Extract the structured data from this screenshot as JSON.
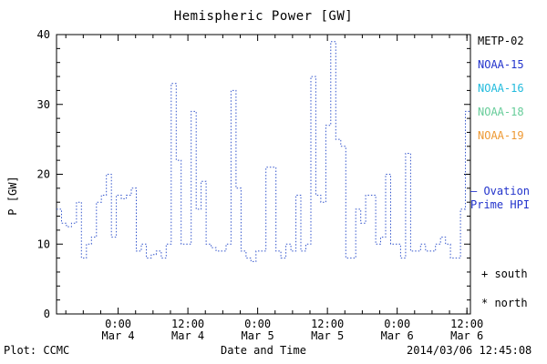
{
  "footer": {
    "plot_credit": "Plot: CCMC",
    "timestamp": "2014/03/06 12:45:08"
  },
  "legend": {
    "satellites": [
      {
        "label": "METP-02",
        "color": "#000000"
      },
      {
        "label": "NOAA-15",
        "color": "#2233cc"
      },
      {
        "label": "NOAA-16",
        "color": "#22bbdd"
      },
      {
        "label": "NOAA-18",
        "color": "#66cc99"
      },
      {
        "label": "NOAA-19",
        "color": "#ee9933"
      }
    ],
    "line_label_1": "— Ovation",
    "line_label_2": "Prime HPI",
    "line_label_color": "#2233cc",
    "south_label": "+ south",
    "north_label": "* north"
  },
  "chart_data": {
    "type": "line",
    "title": "Hemispheric Power [GW]",
    "xlabel": "Date and Time",
    "ylabel": "P [GW]",
    "ylim": [
      0,
      40
    ],
    "y_ticks": [
      0,
      10,
      20,
      30,
      40
    ],
    "x_domain_hours": [
      0,
      71.2
    ],
    "x_ticks": [
      {
        "hour": 10.6,
        "time": "0:00",
        "date": "Mar 4"
      },
      {
        "hour": 22.6,
        "time": "12:00",
        "date": "Mar 4"
      },
      {
        "hour": 34.6,
        "time": "0:00",
        "date": "Mar 5"
      },
      {
        "hour": 46.6,
        "time": "12:00",
        "date": "Mar 5"
      },
      {
        "hour": 58.6,
        "time": "0:00",
        "date": "Mar 6"
      },
      {
        "hour": 70.6,
        "time": "12:00",
        "date": "Mar 6"
      }
    ],
    "line_color": "#3355cc",
    "line_style": "dotted",
    "grid": false,
    "legend_position": "right",
    "series": [
      {
        "name": "Ovation Prime HPI",
        "values": [
          15,
          13,
          12.5,
          13,
          16,
          8,
          10,
          11,
          16,
          17,
          20,
          11,
          17,
          16.5,
          17,
          18,
          9,
          10,
          8,
          8.5,
          9,
          8,
          10,
          33,
          22,
          10,
          10,
          29,
          15,
          19,
          10,
          9.5,
          9,
          9,
          10,
          32,
          18,
          9,
          8,
          7.5,
          9,
          9,
          21,
          21,
          9,
          8,
          10,
          9,
          17,
          9,
          10,
          34,
          17,
          16,
          27,
          39,
          25,
          24,
          8,
          8,
          15,
          13,
          17,
          17,
          10,
          11,
          20,
          10,
          10,
          8,
          23,
          9,
          9,
          10,
          9,
          9,
          10,
          11,
          10,
          8,
          8,
          15,
          29
        ]
      }
    ]
  }
}
